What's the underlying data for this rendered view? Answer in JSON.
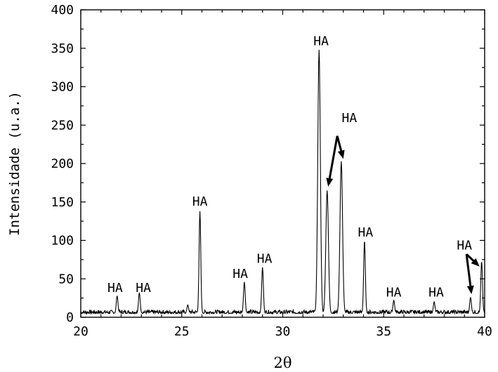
{
  "chart_data": {
    "type": "line",
    "xlabel": "2θ",
    "ylabel": "Intensidade (u.a.)",
    "xlim": [
      20,
      40
    ],
    "ylim": [
      0,
      400
    ],
    "xticks": [
      "20",
      "25",
      "30",
      "35",
      "40"
    ],
    "yticks": [
      "0",
      "50",
      "100",
      "150",
      "200",
      "250",
      "300",
      "350",
      "400"
    ],
    "grid": false,
    "series": [
      {
        "peaks": [
          {
            "x": 21.8,
            "y": 28
          },
          {
            "x": 22.9,
            "y": 32
          },
          {
            "x": 25.3,
            "y": 16
          },
          {
            "x": 25.9,
            "y": 138
          },
          {
            "x": 28.1,
            "y": 46
          },
          {
            "x": 29.0,
            "y": 65
          },
          {
            "x": 31.8,
            "y": 348
          },
          {
            "x": 32.2,
            "y": 165
          },
          {
            "x": 32.9,
            "y": 203
          },
          {
            "x": 34.05,
            "y": 100
          },
          {
            "x": 35.5,
            "y": 22
          },
          {
            "x": 37.5,
            "y": 20
          },
          {
            "x": 39.3,
            "y": 26
          },
          {
            "x": 39.85,
            "y": 73
          }
        ],
        "baseline": 5
      }
    ],
    "annotations": [
      {
        "text": "HA",
        "x": 21.7,
        "y": 33
      },
      {
        "text": "HA",
        "x": 23.1,
        "y": 33
      },
      {
        "text": "HA",
        "x": 25.9,
        "y": 145
      },
      {
        "text": "HA",
        "x": 27.9,
        "y": 51
      },
      {
        "text": "HA",
        "x": 29.1,
        "y": 71
      },
      {
        "text": "HA",
        "x": 31.9,
        "y": 354
      },
      {
        "text": "HA",
        "x": 33.3,
        "y": 254
      },
      {
        "text": "HA",
        "x": 34.1,
        "y": 105
      },
      {
        "text": "HA",
        "x": 35.5,
        "y": 27
      },
      {
        "text": "HA",
        "x": 37.6,
        "y": 27
      },
      {
        "text": "HA",
        "x": 39.0,
        "y": 88
      }
    ],
    "arrows": [
      {
        "from": [
          32.7,
          236
        ],
        "to": [
          32.25,
          170
        ]
      },
      {
        "from": [
          32.7,
          236
        ],
        "to": [
          33.0,
          206
        ]
      },
      {
        "from": [
          39.1,
          82
        ],
        "to": [
          39.35,
          30
        ]
      },
      {
        "from": [
          39.1,
          82
        ],
        "to": [
          39.75,
          66
        ]
      }
    ]
  }
}
